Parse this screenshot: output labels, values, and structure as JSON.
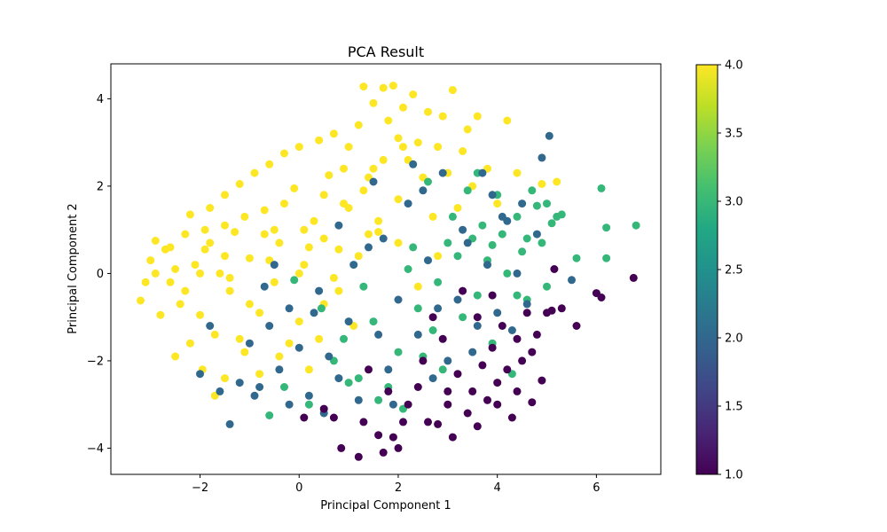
{
  "chart_data": {
    "type": "scatter",
    "title": "PCA Result",
    "xlabel": "Principal Component 1",
    "ylabel": "Principal Component 2",
    "xlim": [
      -3.8,
      7.3
    ],
    "ylim": [
      -4.6,
      4.8
    ],
    "xticks": [
      -2,
      0,
      2,
      4,
      6
    ],
    "yticks": [
      -4,
      -2,
      0,
      2,
      4
    ],
    "xtick_labels": [
      "−2",
      "0",
      "2",
      "4",
      "6"
    ],
    "ytick_labels": [
      "−4",
      "−2",
      "0",
      "2",
      "4"
    ],
    "grid": false,
    "colorbar": {
      "colormap": "viridis",
      "min": 1.0,
      "max": 4.0,
      "ticks": [
        1.0,
        1.5,
        2.0,
        2.5,
        3.0,
        3.5,
        4.0
      ],
      "tick_labels": [
        "1.0",
        "1.5",
        "2.0",
        "2.5",
        "3.0",
        "3.5",
        "4.0"
      ]
    },
    "series": [
      {
        "value": 4,
        "color": "#fde725",
        "points": [
          [
            -3.2,
            -0.62
          ],
          [
            -3.1,
            -0.2
          ],
          [
            -3.0,
            0.3
          ],
          [
            -2.9,
            0.75
          ],
          [
            -2.8,
            -0.95
          ],
          [
            -2.7,
            0.55
          ],
          [
            -2.6,
            -0.2
          ],
          [
            -2.5,
            0.1
          ],
          [
            -2.4,
            -0.7
          ],
          [
            -2.3,
            0.9
          ],
          [
            -2.2,
            1.35
          ],
          [
            -2.1,
            0.2
          ],
          [
            -2.0,
            -0.95
          ],
          [
            -1.9,
            0.55
          ],
          [
            -1.8,
            1.5
          ],
          [
            -1.7,
            -1.4
          ],
          [
            -1.6,
            0.0
          ],
          [
            -1.5,
            1.8
          ],
          [
            -1.4,
            -0.4
          ],
          [
            -1.3,
            0.95
          ],
          [
            -1.2,
            2.05
          ],
          [
            -1.1,
            -1.8
          ],
          [
            -1.0,
            0.35
          ],
          [
            -0.9,
            2.3
          ],
          [
            -0.8,
            -0.9
          ],
          [
            -0.7,
            1.45
          ],
          [
            -0.6,
            2.5
          ],
          [
            -0.5,
            -0.2
          ],
          [
            -0.4,
            0.7
          ],
          [
            -0.3,
            2.75
          ],
          [
            -0.2,
            -1.6
          ],
          [
            -0.1,
            1.95
          ],
          [
            0.0,
            2.9
          ],
          [
            0.1,
            0.2
          ],
          [
            0.2,
            -2.2
          ],
          [
            0.3,
            1.2
          ],
          [
            0.4,
            3.05
          ],
          [
            0.5,
            -0.7
          ],
          [
            0.6,
            2.25
          ],
          [
            0.7,
            3.2
          ],
          [
            0.8,
            0.55
          ],
          [
            0.9,
            1.6
          ],
          [
            1.0,
            2.9
          ],
          [
            1.1,
            -1.2
          ],
          [
            1.2,
            3.4
          ],
          [
            1.3,
            4.28
          ],
          [
            1.4,
            2.2
          ],
          [
            1.5,
            3.9
          ],
          [
            1.6,
            0.95
          ],
          [
            1.7,
            4.25
          ],
          [
            1.8,
            3.5
          ],
          [
            1.9,
            4.3
          ],
          [
            2.0,
            1.7
          ],
          [
            2.1,
            3.8
          ],
          [
            2.2,
            2.6
          ],
          [
            2.3,
            4.1
          ],
          [
            2.4,
            3.0
          ],
          [
            2.5,
            2.2
          ],
          [
            2.6,
            3.7
          ],
          [
            2.7,
            1.3
          ],
          [
            2.8,
            2.9
          ],
          [
            2.9,
            3.6
          ],
          [
            3.0,
            2.3
          ],
          [
            3.1,
            4.2
          ],
          [
            3.2,
            1.5
          ],
          [
            3.3,
            2.8
          ],
          [
            3.4,
            3.3
          ],
          [
            3.5,
            2.0
          ],
          [
            3.6,
            3.6
          ],
          [
            3.8,
            2.4
          ],
          [
            4.0,
            1.6
          ],
          [
            4.2,
            3.5
          ],
          [
            4.4,
            2.3
          ],
          [
            4.9,
            2.05
          ],
          [
            5.2,
            2.1
          ],
          [
            -2.5,
            -1.9
          ],
          [
            -2.2,
            -1.6
          ],
          [
            -1.95,
            -2.2
          ],
          [
            -1.7,
            -2.8
          ],
          [
            -1.5,
            -2.4
          ],
          [
            -1.2,
            -1.5
          ],
          [
            -0.8,
            -2.3
          ],
          [
            -0.4,
            -1.9
          ],
          [
            0.0,
            -1.1
          ],
          [
            0.4,
            -1.5
          ],
          [
            0.8,
            -0.4
          ],
          [
            1.2,
            0.4
          ],
          [
            1.6,
            1.2
          ],
          [
            2.0,
            0.7
          ],
          [
            2.4,
            -0.3
          ],
          [
            2.8,
            0.4
          ],
          [
            -2.9,
            0.0
          ],
          [
            -2.6,
            0.6
          ],
          [
            -2.3,
            -0.4
          ],
          [
            -1.9,
            1.0
          ],
          [
            -1.5,
            0.4
          ],
          [
            -1.1,
            1.3
          ],
          [
            -0.7,
            0.9
          ],
          [
            -0.3,
            1.6
          ],
          [
            0.1,
            1.0
          ],
          [
            0.5,
            1.8
          ],
          [
            0.9,
            2.4
          ],
          [
            1.3,
            1.9
          ],
          [
            1.7,
            2.6
          ],
          [
            2.1,
            2.9
          ],
          [
            -2.0,
            0.0
          ],
          [
            -1.5,
            1.1
          ],
          [
            -1.0,
            -0.7
          ],
          [
            -0.5,
            1.0
          ],
          [
            0.0,
            0.0
          ],
          [
            0.5,
            0.8
          ],
          [
            1.0,
            1.5
          ],
          [
            1.5,
            2.4
          ],
          [
            2.0,
            3.1
          ],
          [
            -1.8,
            0.7
          ],
          [
            -1.4,
            -0.1
          ],
          [
            -0.6,
            0.3
          ],
          [
            0.2,
            0.6
          ],
          [
            0.7,
            -0.1
          ],
          [
            1.4,
            0.9
          ]
        ]
      },
      {
        "value": 3,
        "color": "#35b779",
        "points": [
          [
            -0.1,
            -0.15
          ],
          [
            0.45,
            -0.8
          ],
          [
            0.9,
            -1.5
          ],
          [
            1.2,
            -2.4
          ],
          [
            1.5,
            -1.1
          ],
          [
            1.8,
            -2.6
          ],
          [
            2.0,
            -1.8
          ],
          [
            2.2,
            0.1
          ],
          [
            2.4,
            -0.8
          ],
          [
            2.5,
            -1.9
          ],
          [
            2.7,
            -1.3
          ],
          [
            2.9,
            -2.2
          ],
          [
            3.0,
            0.7
          ],
          [
            3.1,
            1.3
          ],
          [
            3.2,
            0.4
          ],
          [
            3.3,
            -1.0
          ],
          [
            3.4,
            1.9
          ],
          [
            3.5,
            0.8
          ],
          [
            3.6,
            -0.5
          ],
          [
            3.7,
            1.1
          ],
          [
            3.8,
            0.3
          ],
          [
            3.9,
            -1.6
          ],
          [
            4.0,
            1.8
          ],
          [
            4.1,
            0.9
          ],
          [
            4.2,
            0.0
          ],
          [
            4.3,
            -2.3
          ],
          [
            4.4,
            1.3
          ],
          [
            4.5,
            0.5
          ],
          [
            4.6,
            -0.6
          ],
          [
            4.8,
            1.55
          ],
          [
            4.9,
            0.7
          ],
          [
            5.0,
            -0.3
          ],
          [
            5.1,
            1.15
          ],
          [
            5.2,
            1.3
          ],
          [
            5.3,
            1.35
          ],
          [
            5.6,
            0.35
          ],
          [
            6.1,
            1.95
          ],
          [
            6.2,
            1.05
          ],
          [
            6.2,
            0.35
          ],
          [
            6.8,
            1.1
          ],
          [
            4.7,
            1.9
          ],
          [
            2.6,
            2.1
          ],
          [
            2.8,
            -0.2
          ],
          [
            3.6,
            2.3
          ],
          [
            3.9,
            0.65
          ],
          [
            1.0,
            -2.5
          ],
          [
            1.6,
            -2.9
          ],
          [
            2.1,
            -3.1
          ],
          [
            0.7,
            -2.0
          ],
          [
            1.3,
            -0.3
          ],
          [
            2.3,
            0.6
          ],
          [
            0.2,
            -3.0
          ],
          [
            -0.6,
            -3.25
          ],
          [
            -0.3,
            -2.6
          ],
          [
            4.6,
            0.8
          ],
          [
            5.0,
            1.6
          ],
          [
            4.4,
            -0.5
          ]
        ]
      },
      {
        "value": 2,
        "color": "#31688e",
        "points": [
          [
            -1.4,
            -3.45
          ],
          [
            -1.2,
            -2.5
          ],
          [
            -1.0,
            -1.6
          ],
          [
            -0.8,
            -2.6
          ],
          [
            -0.6,
            -1.2
          ],
          [
            -0.4,
            -2.2
          ],
          [
            -0.2,
            -0.8
          ],
          [
            0.0,
            -1.7
          ],
          [
            0.2,
            -2.8
          ],
          [
            0.4,
            -0.4
          ],
          [
            0.6,
            -1.9
          ],
          [
            0.8,
            -2.4
          ],
          [
            1.0,
            -1.1
          ],
          [
            1.2,
            -2.9
          ],
          [
            1.4,
            0.6
          ],
          [
            1.6,
            -1.4
          ],
          [
            1.8,
            -2.2
          ],
          [
            2.0,
            -0.6
          ],
          [
            2.2,
            1.6
          ],
          [
            2.4,
            -1.4
          ],
          [
            2.6,
            0.3
          ],
          [
            2.8,
            -0.8
          ],
          [
            3.0,
            -2.0
          ],
          [
            3.2,
            -0.6
          ],
          [
            3.4,
            0.7
          ],
          [
            3.6,
            -1.2
          ],
          [
            3.8,
            0.2
          ],
          [
            4.0,
            -0.9
          ],
          [
            4.2,
            1.2
          ],
          [
            4.4,
            0.0
          ],
          [
            4.6,
            -0.7
          ],
          [
            4.8,
            0.9
          ],
          [
            4.9,
            2.65
          ],
          [
            5.05,
            3.15
          ],
          [
            5.5,
            -0.15
          ],
          [
            3.9,
            1.8
          ],
          [
            1.5,
            2.1
          ],
          [
            0.8,
            1.1
          ],
          [
            -0.5,
            0.2
          ],
          [
            -1.8,
            -1.2
          ],
          [
            -2.0,
            -2.3
          ],
          [
            -0.9,
            -2.8
          ],
          [
            2.5,
            1.9
          ],
          [
            3.3,
            1.0
          ],
          [
            4.1,
            1.3
          ],
          [
            1.9,
            -3.0
          ],
          [
            0.5,
            -3.2
          ],
          [
            -0.2,
            -3.0
          ],
          [
            1.1,
            0.2
          ],
          [
            2.7,
            -2.4
          ],
          [
            3.5,
            -1.8
          ],
          [
            4.3,
            -1.3
          ],
          [
            4.5,
            1.6
          ],
          [
            2.3,
            2.5
          ],
          [
            3.7,
            2.3
          ],
          [
            -1.6,
            -2.7
          ],
          [
            -0.7,
            -0.3
          ],
          [
            0.3,
            -0.9
          ],
          [
            1.7,
            0.8
          ],
          [
            2.9,
            2.3
          ]
        ]
      },
      {
        "value": 1,
        "color": "#440154",
        "points": [
          [
            0.1,
            -3.3
          ],
          [
            0.5,
            -3.1
          ],
          [
            0.85,
            -4.0
          ],
          [
            1.2,
            -4.2
          ],
          [
            1.3,
            -3.4
          ],
          [
            1.6,
            -3.7
          ],
          [
            1.7,
            -4.1
          ],
          [
            1.9,
            -3.75
          ],
          [
            2.0,
            -4.0
          ],
          [
            2.2,
            -3.0
          ],
          [
            2.4,
            -2.6
          ],
          [
            2.6,
            -3.4
          ],
          [
            2.8,
            -3.45
          ],
          [
            3.0,
            -3.0
          ],
          [
            3.1,
            -3.75
          ],
          [
            3.2,
            -2.3
          ],
          [
            3.4,
            -3.2
          ],
          [
            3.5,
            -2.7
          ],
          [
            3.6,
            -3.5
          ],
          [
            3.7,
            -2.1
          ],
          [
            3.8,
            -2.9
          ],
          [
            3.9,
            -1.7
          ],
          [
            4.0,
            -2.5
          ],
          [
            4.1,
            -1.2
          ],
          [
            4.2,
            -2.2
          ],
          [
            4.3,
            -3.3
          ],
          [
            4.4,
            -1.5
          ],
          [
            4.5,
            -2.0
          ],
          [
            4.6,
            -0.9
          ],
          [
            4.7,
            -2.95
          ],
          [
            4.8,
            -1.4
          ],
          [
            4.9,
            -2.45
          ],
          [
            5.0,
            -0.9
          ],
          [
            5.1,
            -0.85
          ],
          [
            5.15,
            0.1
          ],
          [
            5.3,
            -0.8
          ],
          [
            5.6,
            -1.2
          ],
          [
            6.0,
            -0.45
          ],
          [
            6.1,
            -0.55
          ],
          [
            6.75,
            -0.1
          ],
          [
            1.4,
            -2.2
          ],
          [
            2.9,
            -1.5
          ],
          [
            3.3,
            -0.4
          ],
          [
            2.5,
            -2.0
          ],
          [
            1.8,
            -2.7
          ],
          [
            4.0,
            -3.0
          ],
          [
            4.4,
            -2.7
          ],
          [
            3.0,
            -2.7
          ],
          [
            2.1,
            -3.4
          ],
          [
            0.7,
            -3.3
          ],
          [
            3.6,
            -1.0
          ],
          [
            4.7,
            -1.8
          ],
          [
            3.9,
            -0.5
          ],
          [
            2.7,
            -1.0
          ]
        ]
      }
    ]
  }
}
